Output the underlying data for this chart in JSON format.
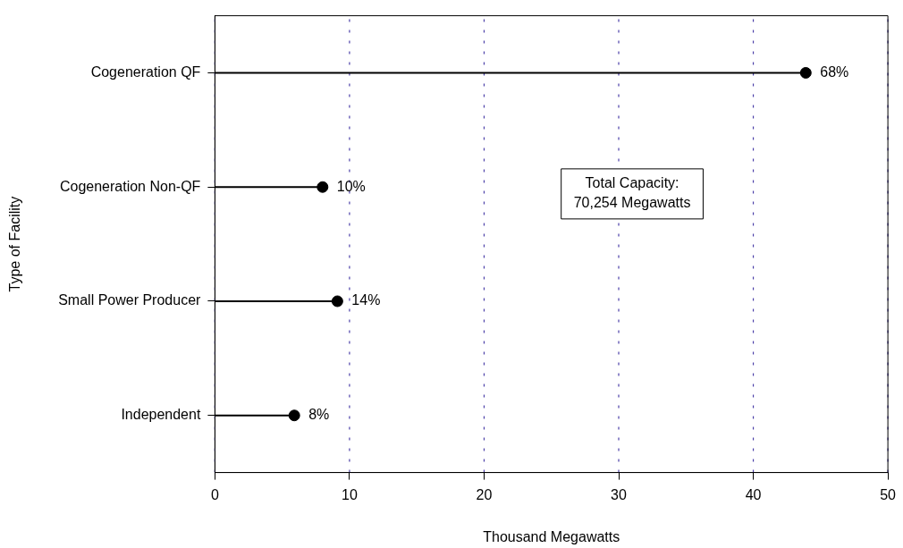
{
  "chart_data": {
    "type": "lollipop",
    "orientation": "horizontal",
    "xlabel": "Thousand Megawatts",
    "ylabel": "Type of Facility",
    "categories": [
      "Cogeneration QF",
      "Cogeneration Non-QF",
      "Small Power Producer",
      "Independent"
    ],
    "values": [
      43.9,
      8.0,
      9.1,
      5.9
    ],
    "color": "#000000",
    "xlim": [
      0,
      50
    ],
    "xticks": [
      0,
      10,
      20,
      30,
      40,
      50
    ],
    "grid": "x",
    "marker": "circle",
    "annotations": [
      {
        "text": "68%",
        "x": 43.9,
        "y": "Cogeneration QF"
      },
      {
        "text": "10%",
        "x": 8.0,
        "y": "Cogeneration Non-QF"
      },
      {
        "text": "14%",
        "x": 9.1,
        "y": "Small Power Producer"
      },
      {
        "text": "8%",
        "x": 5.9,
        "y": "Independent"
      },
      "Total Capacity:",
      "70,254 Megawatts"
    ]
  }
}
